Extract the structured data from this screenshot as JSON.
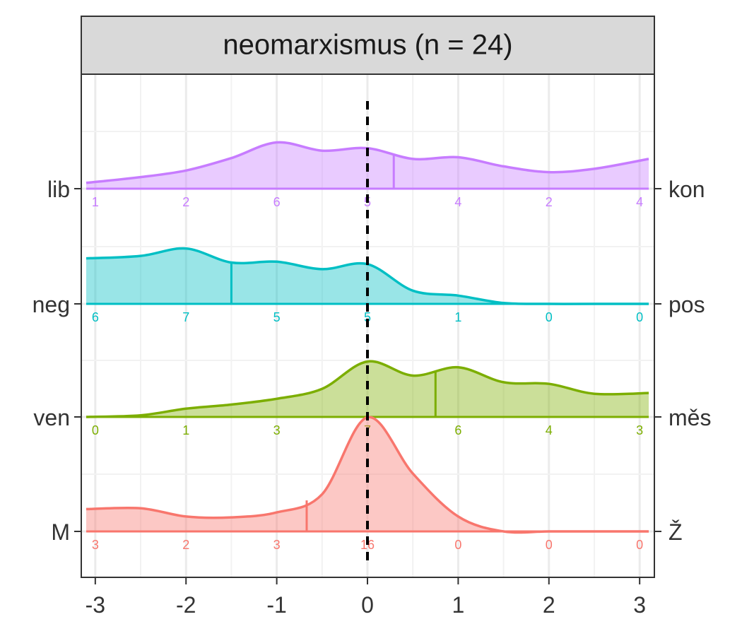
{
  "chart_data": {
    "type": "area",
    "title": "neomarxismus (n = 24)",
    "xlabel": "",
    "ylabel": "",
    "xlim": [
      -3.1,
      3.1
    ],
    "x_ticks": [
      "-3",
      "-2",
      "-1",
      "0",
      "1",
      "2",
      "3"
    ],
    "x_tick_values": [
      -3,
      -2,
      -1,
      0,
      1,
      2,
      3
    ],
    "reference_line_x": 0,
    "grid": true,
    "density_x": [
      -3.1,
      -2.5,
      -2.0,
      -1.5,
      -1.0,
      -0.5,
      0.0,
      0.5,
      1.0,
      1.5,
      2.0,
      2.5,
      3.1
    ],
    "count_x": [
      -3,
      -2,
      -1,
      0,
      1,
      2,
      3
    ],
    "series": [
      {
        "left_label": "lib",
        "right_label": "kon",
        "color": "#C77CFF",
        "density": [
          0.07,
          0.14,
          0.22,
          0.37,
          0.56,
          0.46,
          0.49,
          0.36,
          0.38,
          0.27,
          0.2,
          0.24,
          0.36
        ],
        "mean": 0.29,
        "counts": [
          "1",
          "2",
          "6",
          "5",
          "4",
          "2",
          "4"
        ]
      },
      {
        "left_label": "neg",
        "right_label": "pos",
        "color": "#00BFC4",
        "density": [
          0.55,
          0.58,
          0.67,
          0.5,
          0.51,
          0.42,
          0.48,
          0.16,
          0.1,
          0.01,
          0.0,
          0.0,
          0.0
        ],
        "mean": -1.5,
        "counts": [
          "6",
          "7",
          "5",
          "5",
          "1",
          "0",
          "0"
        ]
      },
      {
        "left_label": "ven",
        "right_label": "měs",
        "color": "#7CAE00",
        "density": [
          0.0,
          0.02,
          0.1,
          0.15,
          0.22,
          0.34,
          0.67,
          0.5,
          0.6,
          0.42,
          0.4,
          0.28,
          0.29
        ],
        "mean": 0.75,
        "counts": [
          "0",
          "1",
          "3",
          "7",
          "6",
          "4",
          "3"
        ]
      },
      {
        "left_label": "M",
        "right_label": "Ž",
        "color": "#F8766D",
        "density": [
          0.27,
          0.28,
          0.18,
          0.17,
          0.23,
          0.45,
          1.38,
          0.7,
          0.18,
          0.0,
          0.0,
          0.0,
          0.0
        ],
        "mean": -0.67,
        "counts": [
          "3",
          "2",
          "3",
          "16",
          "0",
          "0",
          "0"
        ]
      }
    ]
  }
}
